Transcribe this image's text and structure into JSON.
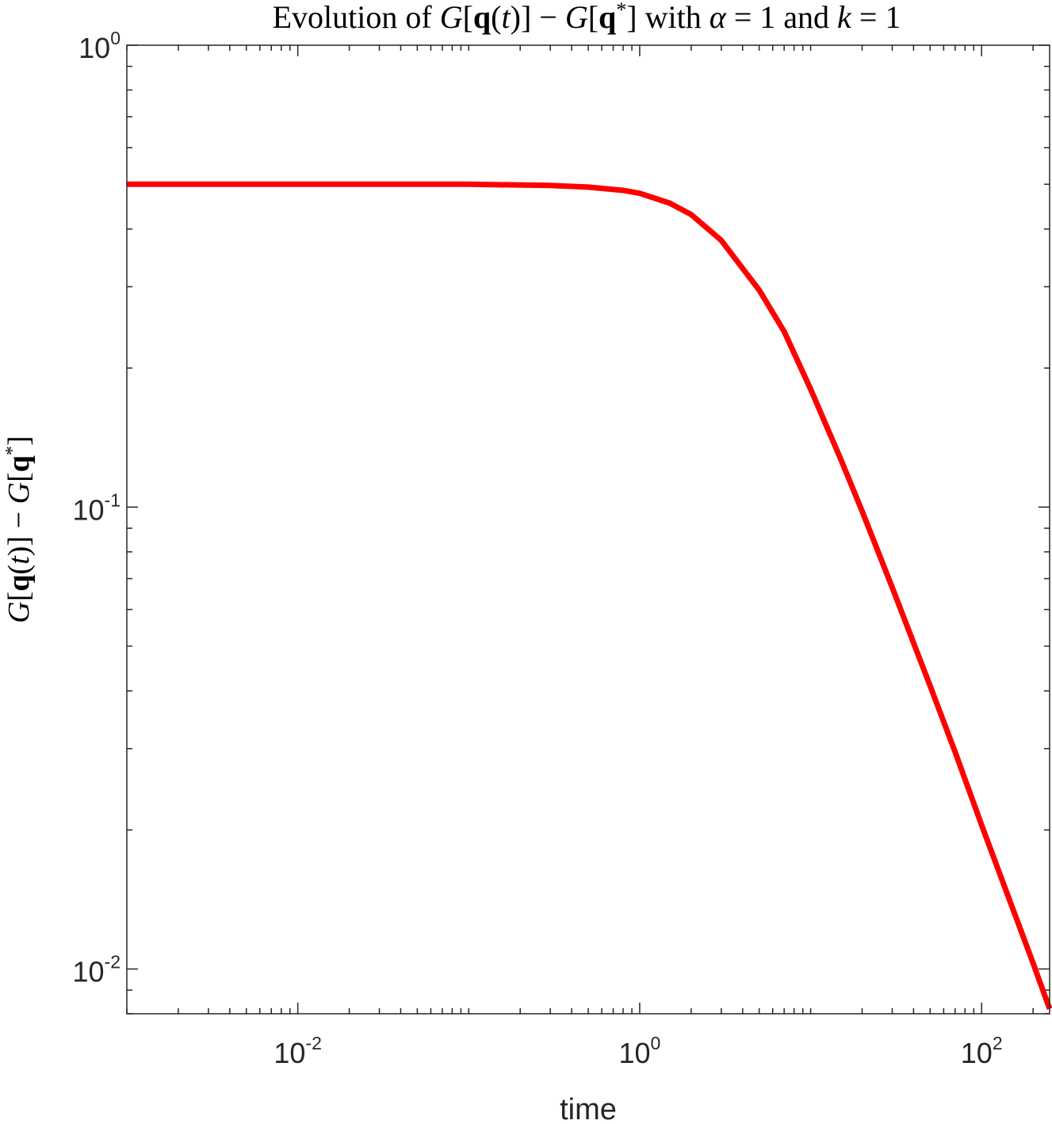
{
  "chart_data": {
    "type": "line",
    "title": "Evolution of G[q(t)] − G[q*] with α = 1 and k = 1",
    "title_parts": {
      "t1": "Evolution of ",
      "t2": "G",
      "t3": "[",
      "t4": "q",
      "t5": "(",
      "t6": "t",
      "t7": ")] − ",
      "t8": "G",
      "t9": "[",
      "t10": "q",
      "t11": "*",
      "t12": "] with ",
      "t13": "α",
      "t14": " = 1 and ",
      "t15": "k",
      "t16": " = 1"
    },
    "xlabel": "time",
    "ylabel": "G[q(t)] − G[q*]",
    "ylabel_parts": {
      "p1": "G",
      "p2": "[",
      "p3": "q",
      "p4": "(",
      "p5": "t",
      "p6": ")] − ",
      "p7": "G",
      "p8": "[",
      "p9": "q",
      "p10": "*",
      "p11": "]"
    },
    "x_scale": "log",
    "y_scale": "log",
    "xlim": [
      0.001,
      250
    ],
    "ylim": [
      0.008,
      1
    ],
    "grid": false,
    "x_ticks": [
      {
        "value": 0.01,
        "base": "10",
        "exp": "-2"
      },
      {
        "value": 1,
        "base": "10",
        "exp": "0"
      },
      {
        "value": 100,
        "base": "10",
        "exp": "2"
      }
    ],
    "y_ticks": [
      {
        "value": 1,
        "base": "10",
        "exp": "0"
      },
      {
        "value": 0.1,
        "base": "10",
        "exp": "-1"
      },
      {
        "value": 0.01,
        "base": "10",
        "exp": "-2"
      }
    ],
    "series": [
      {
        "color": "#ff0000",
        "x": [
          0.001,
          0.01,
          0.1,
          0.3,
          0.5,
          0.8,
          1,
          1.5,
          2,
          3,
          5,
          7,
          10,
          15,
          20,
          30,
          50,
          70,
          100,
          150,
          200,
          250
        ],
        "y": [
          0.5,
          0.5,
          0.5,
          0.497,
          0.493,
          0.485,
          0.478,
          0.455,
          0.43,
          0.378,
          0.295,
          0.24,
          0.18,
          0.127,
          0.098,
          0.067,
          0.041,
          0.0295,
          0.0205,
          0.0137,
          0.0103,
          0.0082
        ]
      }
    ]
  }
}
